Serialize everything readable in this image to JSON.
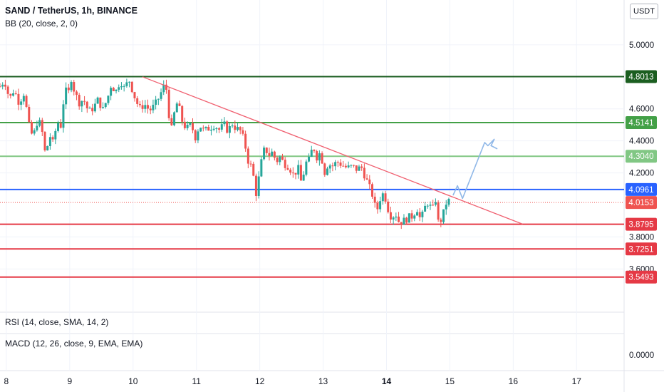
{
  "header": {
    "title": "SAND / TetherUS, 1h, BINANCE",
    "bb": "BB (20, close, 2, 0)",
    "currency": "USDT"
  },
  "indicators": {
    "rsi": "RSI (14, close, SMA, 14, 2)",
    "macd": "MACD (12, 26, close, 9, EMA, EMA)",
    "macd_zero_label": "0.0000"
  },
  "colors": {
    "up": "#26a69a",
    "down": "#ef5350",
    "trendline": "#f06070",
    "projection": "#90b8e8",
    "grid": "#f0f3fa",
    "axis_text": "#131722"
  },
  "chart_data": {
    "type": "candlestick",
    "title": "SAND / TetherUS, 1h, BINANCE",
    "x_tick_labels": [
      "8",
      "9",
      "10",
      "11",
      "12",
      "13",
      "14",
      "15",
      "16",
      "17"
    ],
    "x_range_days": [
      7.9,
      17.75
    ],
    "ylim": [
      3.33,
      5.28
    ],
    "y_tick_labels": [
      "5.0000",
      "4.6000",
      "4.4000",
      "4.2000",
      "3.8000",
      "3.6000"
    ],
    "grid": true,
    "horizontal_levels": [
      {
        "value": 4.8013,
        "label": "4.8013",
        "color": "#1b5e20",
        "style": "solid"
      },
      {
        "value": 4.5141,
        "label": "4.5141",
        "color": "#43a047",
        "style": "solid"
      },
      {
        "value": 4.304,
        "label": "4.3040",
        "color": "#81c784",
        "style": "solid"
      },
      {
        "value": 4.0961,
        "label": "4.0961",
        "color": "#2962ff",
        "style": "solid"
      },
      {
        "value": 4.0153,
        "label": "4.0153",
        "color": "#ef5350",
        "style": "dotted"
      },
      {
        "value": 3.8795,
        "label": "3.8795",
        "color": "#e53945",
        "style": "solid"
      },
      {
        "value": 3.7251,
        "label": "3.7251",
        "color": "#e53945",
        "style": "solid"
      },
      {
        "value": 3.5493,
        "label": "3.5493",
        "color": "#e53945",
        "style": "solid"
      }
    ],
    "trendline": {
      "from": [
        10.15,
        4.8
      ],
      "to": [
        16.15,
        3.88
      ]
    },
    "projection_path": [
      [
        15.05,
        4.06
      ],
      [
        15.12,
        4.12
      ],
      [
        15.2,
        4.04
      ],
      [
        15.55,
        4.39
      ],
      [
        15.6,
        4.37
      ],
      [
        15.7,
        4.41
      ],
      [
        15.65,
        4.37
      ],
      [
        15.75,
        4.35
      ]
    ],
    "price_path": [
      [
        7.9,
        4.74
      ],
      [
        7.97,
        4.78
      ],
      [
        8.05,
        4.66
      ],
      [
        8.12,
        4.72
      ],
      [
        8.2,
        4.64
      ],
      [
        8.28,
        4.7
      ],
      [
        8.36,
        4.49
      ],
      [
        8.42,
        4.42
      ],
      [
        8.5,
        4.54
      ],
      [
        8.56,
        4.47
      ],
      [
        8.62,
        4.3
      ],
      [
        8.68,
        4.44
      ],
      [
        8.74,
        4.38
      ],
      [
        8.8,
        4.52
      ],
      [
        8.87,
        4.49
      ],
      [
        8.92,
        4.74
      ],
      [
        8.97,
        4.67
      ],
      [
        9.02,
        4.8
      ],
      [
        9.08,
        4.7
      ],
      [
        9.15,
        4.64
      ],
      [
        9.22,
        4.66
      ],
      [
        9.3,
        4.58
      ],
      [
        9.38,
        4.61
      ],
      [
        9.45,
        4.66
      ],
      [
        9.52,
        4.59
      ],
      [
        9.6,
        4.67
      ],
      [
        9.66,
        4.76
      ],
      [
        9.72,
        4.7
      ],
      [
        9.8,
        4.78
      ],
      [
        9.87,
        4.72
      ],
      [
        9.93,
        4.79
      ],
      [
        9.98,
        4.73
      ],
      [
        10.03,
        4.67
      ],
      [
        10.1,
        4.6
      ],
      [
        10.18,
        4.63
      ],
      [
        10.26,
        4.59
      ],
      [
        10.34,
        4.62
      ],
      [
        10.42,
        4.68
      ],
      [
        10.48,
        4.74
      ],
      [
        10.53,
        4.72
      ],
      [
        10.57,
        4.55
      ],
      [
        10.62,
        4.45
      ],
      [
        10.67,
        4.65
      ],
      [
        10.73,
        4.6
      ],
      [
        10.79,
        4.5
      ],
      [
        10.86,
        4.48
      ],
      [
        10.92,
        4.5
      ],
      [
        10.98,
        4.42
      ],
      [
        11.05,
        4.5
      ],
      [
        11.12,
        4.46
      ],
      [
        11.2,
        4.48
      ],
      [
        11.28,
        4.5
      ],
      [
        11.36,
        4.47
      ],
      [
        11.44,
        4.5
      ],
      [
        11.5,
        4.46
      ],
      [
        11.56,
        4.51
      ],
      [
        11.62,
        4.48
      ],
      [
        11.7,
        4.46
      ],
      [
        11.76,
        4.39
      ],
      [
        11.82,
        4.27
      ],
      [
        11.88,
        4.23
      ],
      [
        11.94,
        4.07
      ],
      [
        11.99,
        4.18
      ],
      [
        12.03,
        4.28
      ],
      [
        12.08,
        4.36
      ],
      [
        12.14,
        4.31
      ],
      [
        12.2,
        4.33
      ],
      [
        12.26,
        4.27
      ],
      [
        12.32,
        4.3
      ],
      [
        12.38,
        4.26
      ],
      [
        12.46,
        4.24
      ],
      [
        12.54,
        4.18
      ],
      [
        12.6,
        4.24
      ],
      [
        12.66,
        4.13
      ],
      [
        12.72,
        4.26
      ],
      [
        12.78,
        4.28
      ],
      [
        12.84,
        4.37
      ],
      [
        12.9,
        4.3
      ],
      [
        12.96,
        4.33
      ],
      [
        13.02,
        4.2
      ],
      [
        13.08,
        4.26
      ],
      [
        13.14,
        4.24
      ],
      [
        13.22,
        4.27
      ],
      [
        13.3,
        4.25
      ],
      [
        13.38,
        4.23
      ],
      [
        13.46,
        4.24
      ],
      [
        13.54,
        4.22
      ],
      [
        13.6,
        4.24
      ],
      [
        13.66,
        4.18
      ],
      [
        13.72,
        4.12
      ],
      [
        13.78,
        4.06
      ],
      [
        13.84,
        3.95
      ],
      [
        13.9,
        4.04
      ],
      [
        13.96,
        4.08
      ],
      [
        14.02,
        3.98
      ],
      [
        14.08,
        3.92
      ],
      [
        14.14,
        3.95
      ],
      [
        14.2,
        3.89
      ],
      [
        14.27,
        3.9
      ],
      [
        14.34,
        3.92
      ],
      [
        14.41,
        3.93
      ],
      [
        14.48,
        3.98
      ],
      [
        14.54,
        3.9
      ],
      [
        14.6,
        3.98
      ],
      [
        14.66,
        4.02
      ],
      [
        14.72,
        3.96
      ],
      [
        14.78,
        4.04
      ],
      [
        14.82,
        3.88
      ],
      [
        14.88,
        3.92
      ],
      [
        14.94,
        4.01
      ],
      [
        15.0,
        4.03
      ]
    ]
  }
}
